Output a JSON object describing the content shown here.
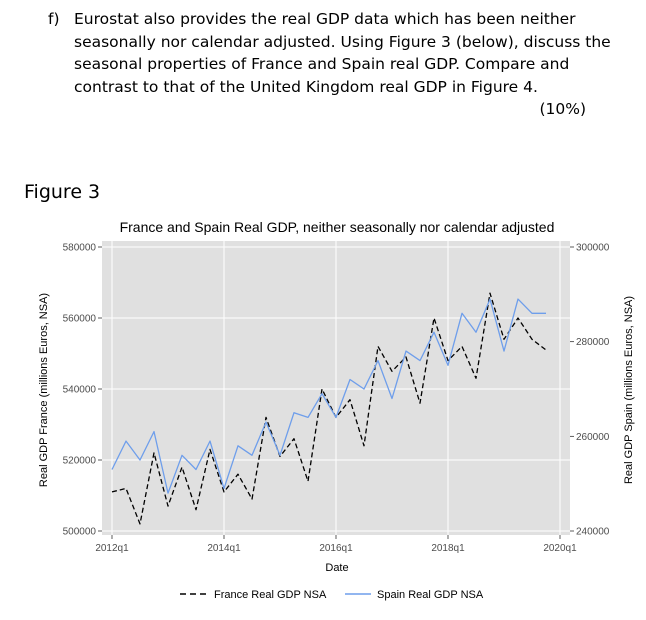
{
  "question": {
    "label": "f)",
    "lines": [
      "Eurostat also provides the real GDP data which has been neither",
      "seasonally nor calendar adjusted. Using Figure 3 (below), discuss the",
      "seasonal properties of France and Spain real GDP. Compare and",
      "contrast to that of the United Kingdom real GDP in Figure 4."
    ],
    "marks": "(10%)"
  },
  "figure_label": "Figure 3",
  "chart_data": {
    "type": "line",
    "title": "France and Spain Real GDP, neither seasonally nor calendar adjusted",
    "xlabel": "Date",
    "ylabel_left": "Real GDP France (millions Euros, NSA)",
    "ylabel_right": "Real GDP Spain (millions Euros, NSA)",
    "x_ticks": [
      "2012q1",
      "2014q1",
      "2016q1",
      "2018q1",
      "2020q1"
    ],
    "x_tick_values": [
      2012,
      2014,
      2016,
      2018,
      2020
    ],
    "xlim": [
      2012,
      2020
    ],
    "y_left_ticks": [
      "500000",
      "520000",
      "540000",
      "560000",
      "580000"
    ],
    "y_left_tick_values": [
      500000,
      520000,
      540000,
      560000,
      580000
    ],
    "ylim_left": [
      500000,
      580000
    ],
    "y_right_ticks": [
      "240000",
      "260000",
      "280000",
      "300000"
    ],
    "y_right_tick_values": [
      240000,
      260000,
      280000,
      300000
    ],
    "ylim_right": [
      240000,
      300000
    ],
    "grid": true,
    "legend_position": "bottom",
    "x": [
      "2012q1",
      "2012q2",
      "2012q3",
      "2012q4",
      "2013q1",
      "2013q2",
      "2013q3",
      "2013q4",
      "2014q1",
      "2014q2",
      "2014q3",
      "2014q4",
      "2015q1",
      "2015q2",
      "2015q3",
      "2015q4",
      "2016q1",
      "2016q2",
      "2016q3",
      "2016q4",
      "2017q1",
      "2017q2",
      "2017q3",
      "2017q4",
      "2018q1",
      "2018q2",
      "2018q3",
      "2018q4",
      "2019q1",
      "2019q2",
      "2019q3",
      "2019q4"
    ],
    "x_values": [
      2012.0,
      2012.25,
      2012.5,
      2012.75,
      2013.0,
      2013.25,
      2013.5,
      2013.75,
      2014.0,
      2014.25,
      2014.5,
      2014.75,
      2015.0,
      2015.25,
      2015.5,
      2015.75,
      2016.0,
      2016.25,
      2016.5,
      2016.75,
      2017.0,
      2017.25,
      2017.5,
      2017.75,
      2018.0,
      2018.25,
      2018.5,
      2018.75,
      2019.0,
      2019.25,
      2019.5,
      2019.75
    ],
    "series": [
      {
        "name": "France Real GDP NSA",
        "axis": "left",
        "color": "#000000",
        "dash": true,
        "values": [
          511000,
          512000,
          502000,
          522000,
          507000,
          518000,
          506000,
          523000,
          511000,
          516000,
          509000,
          532000,
          521000,
          526000,
          514000,
          540000,
          532000,
          537000,
          524000,
          552000,
          545000,
          549000,
          536000,
          560000,
          548000,
          552000,
          543000,
          567000,
          554000,
          560000,
          554000,
          551000
        ]
      },
      {
        "name": "Spain Real GDP NSA",
        "axis": "right",
        "color": "#6e9eeb",
        "dash": false,
        "values": [
          253000,
          259000,
          255000,
          261000,
          248000,
          256000,
          253000,
          259000,
          249000,
          258000,
          256000,
          263000,
          256000,
          265000,
          264000,
          269000,
          264000,
          272000,
          270000,
          276000,
          268000,
          278000,
          276000,
          282000,
          275000,
          286000,
          282000,
          289000,
          278000,
          289000,
          286000,
          286000
        ]
      }
    ]
  }
}
